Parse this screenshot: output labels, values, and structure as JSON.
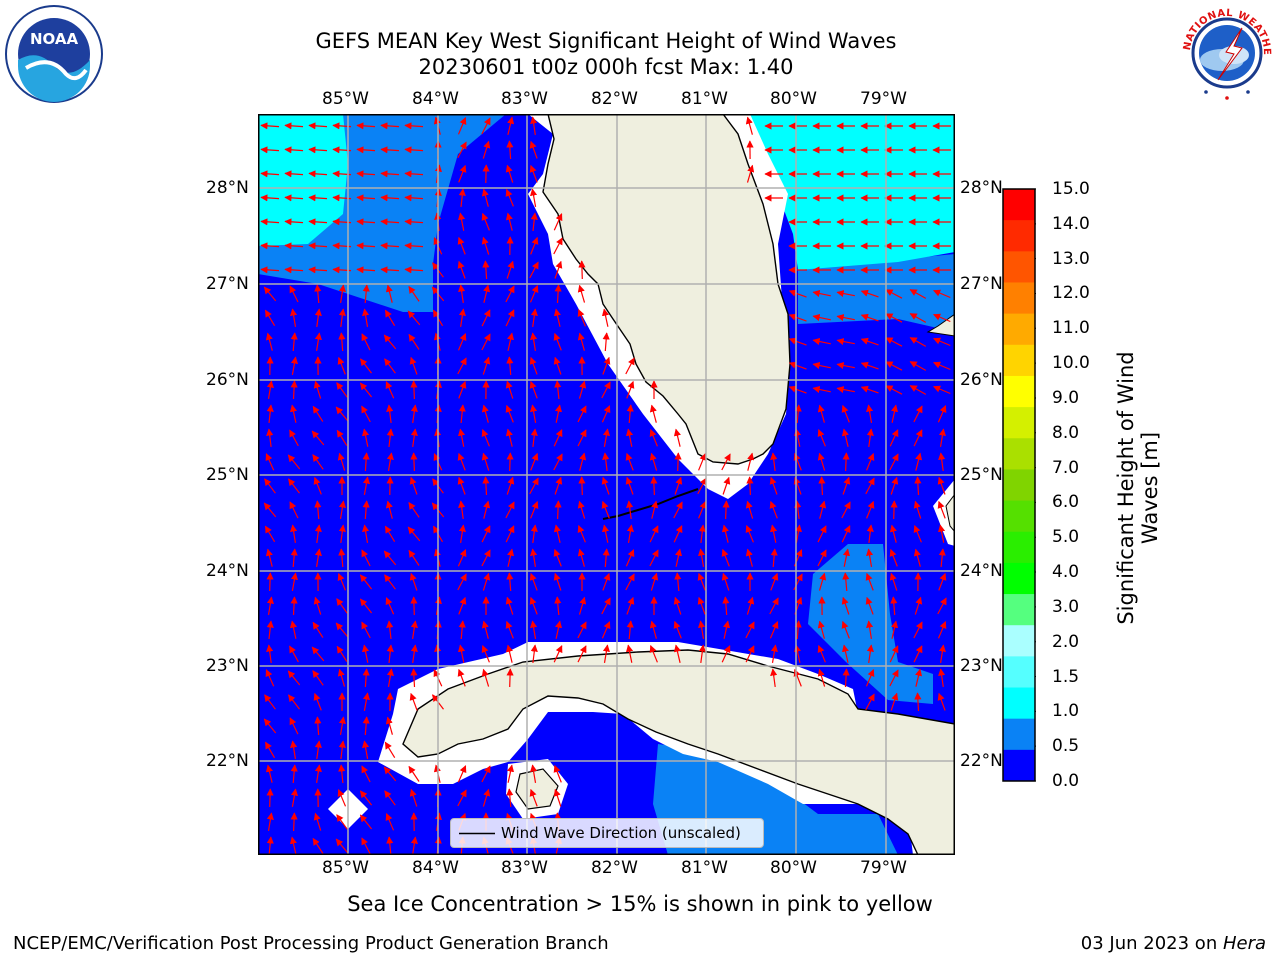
{
  "header": {
    "title_line1": "GEFS MEAN Key West Significant Height of Wind Waves",
    "title_line2": "20230601 t00z 000h fcst   Max: 1.40"
  },
  "logos": {
    "left": {
      "text": "NOAA",
      "ring_text": "NATIONAL OCEANIC AND ATMOSPHERIC ADMINISTRATION · U.S. DEPARTMENT OF COMMERCE"
    },
    "right": {
      "ring_text": "NATIONAL WEATHER SERVICE"
    }
  },
  "map": {
    "lon_labels": [
      "85°W",
      "84°W",
      "83°W",
      "82°W",
      "81°W",
      "80°W",
      "79°W"
    ],
    "lat_labels": [
      "28°N",
      "27°N",
      "26°N",
      "25°N",
      "24°N",
      "23°N",
      "22°N"
    ],
    "extent": {
      "lon_min": -86.0,
      "lon_max": -78.3,
      "lat_min": 21.1,
      "lat_max": 28.75
    },
    "colors": {
      "ocean_low": "#0000ff",
      "ocean_mid": "#0a82f5",
      "ocean_high": "#00ffff",
      "land": "#efefdf",
      "arrow": "#ff0000",
      "grid": "#b0b0b0"
    },
    "legend_label": "Wind Wave Direction (unscaled)"
  },
  "colorbar": {
    "title": "Significant Height of Wind Waves [m]",
    "title_line1": "Significant Height of Wind",
    "title_line2": "Waves [m]",
    "ticks": [
      "15.0",
      "14.0",
      "13.0",
      "12.0",
      "11.0",
      "10.0",
      "9.0",
      "8.0",
      "7.0",
      "6.0",
      "5.0",
      "4.0",
      "3.0",
      "2.0",
      "1.5",
      "1.0",
      "0.5",
      "0.0"
    ],
    "colors_top_to_bottom": [
      "#ff0000",
      "#ff2a00",
      "#ff5500",
      "#ff8000",
      "#ffaa00",
      "#ffd400",
      "#ffff00",
      "#d4f000",
      "#aae000",
      "#80d400",
      "#55e000",
      "#2aee00",
      "#00ff00",
      "#55ff7f",
      "#aaffff",
      "#55ffff",
      "#00ffff",
      "#0a82f5",
      "#0000ff"
    ]
  },
  "caption": "Sea Ice Concentration > 15% is shown in pink to yellow",
  "footer": {
    "left": "NCEP/EMC/Verification Post Processing Product Generation Branch",
    "right_prefix": "03 Jun 2023 on ",
    "right_italic": "Hera"
  }
}
